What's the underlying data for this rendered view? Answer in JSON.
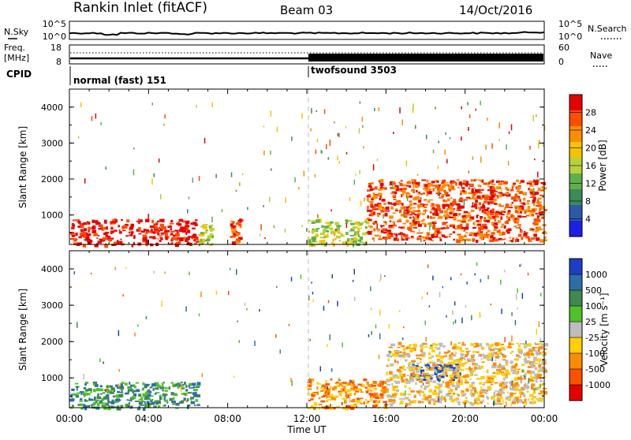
{
  "header": {
    "title": "Rankin Inlet (fitACF)",
    "beam": "Beam 03",
    "date": "14/Oct/2016"
  },
  "noise_panel": {
    "left_label": "N.Sky",
    "left_ticks": [
      "10^5",
      "10^0"
    ],
    "right_label": "N.Search",
    "right_ticks": [
      "10^5",
      "10^0"
    ]
  },
  "freq_panel": {
    "left_label_1": "Freq.",
    "left_label_2": "[MHz]",
    "left_ticks": [
      "18",
      "8"
    ],
    "right_label": "Nave",
    "right_ticks": [
      "60",
      "0"
    ],
    "cpid_label": "CPID"
  },
  "cpid_segments": [
    {
      "label": "normal (fast) 151",
      "start_hour": 0
    },
    {
      "label": "twofsound 3503",
      "start_hour": 12
    }
  ],
  "x_axis": {
    "label": "Time UT",
    "ticks": [
      "00:00",
      "04:00",
      "08:00",
      "12:00",
      "16:00",
      "20:00",
      "00:00"
    ],
    "tick_hours": [
      0,
      4,
      8,
      12,
      16,
      20,
      24
    ]
  },
  "power_panel": {
    "ylabel": "Slant Range [km]",
    "yticks": [
      "1000",
      "2000",
      "3000",
      "4000"
    ],
    "colorbar_label": "Power [dB]",
    "colorbar_ticks": [
      "28",
      "24",
      "20",
      "16",
      "12",
      "8",
      "4"
    ],
    "colors": [
      "#e60000",
      "#ff4d00",
      "#ff8c00",
      "#f5c400",
      "#b8d23a",
      "#5fb04a",
      "#3d8a5a",
      "#2a5aa8",
      "#1e1ee6"
    ]
  },
  "velocity_panel": {
    "ylabel": "Slant Range [km]",
    "yticks": [
      "1000",
      "2000",
      "3000",
      "4000"
    ],
    "colorbar_label": "Velocity [m s⁻¹]",
    "colorbar_ticks": [
      "1000",
      "500",
      "100",
      "25",
      "-25",
      "-100",
      "-500",
      "-1000"
    ],
    "colors": [
      "#1d3fc8",
      "#2d6ea8",
      "#3f8a4e",
      "#4fc12a",
      "#bdbdbd",
      "#ffd000",
      "#ff8c00",
      "#ff5000",
      "#e60000"
    ]
  },
  "chart_data": {
    "type": "heatmap",
    "x_unit": "hours UT",
    "xlim": [
      0,
      24
    ],
    "ylim": [
      180,
      4500
    ],
    "power_regions": [
      {
        "t0": 0,
        "t1": 6.5,
        "r0": 180,
        "r1": 900,
        "level": 28
      },
      {
        "t0": 6.5,
        "t1": 7.2,
        "r0": 180,
        "r1": 750,
        "level": 12
      },
      {
        "t0": 8.1,
        "t1": 8.6,
        "r0": 180,
        "r1": 900,
        "level": 24
      },
      {
        "t0": 12,
        "t1": 15,
        "r0": 180,
        "r1": 900,
        "level": 12
      },
      {
        "t0": 15,
        "t1": 24,
        "r0": 300,
        "r1": 2000,
        "level": 24
      }
    ],
    "velocity_regions": [
      {
        "t0": 0,
        "t1": 6.5,
        "r0": 180,
        "r1": 900,
        "level": 100
      },
      {
        "t0": 12,
        "t1": 16,
        "r0": 180,
        "r1": 1000,
        "level": -500
      },
      {
        "t0": 17.2,
        "t1": 19.8,
        "r0": 900,
        "r1": 1400,
        "level": 1000
      },
      {
        "t0": 16,
        "t1": 24,
        "r0": 300,
        "r1": 2000,
        "level": -100
      }
    ]
  }
}
